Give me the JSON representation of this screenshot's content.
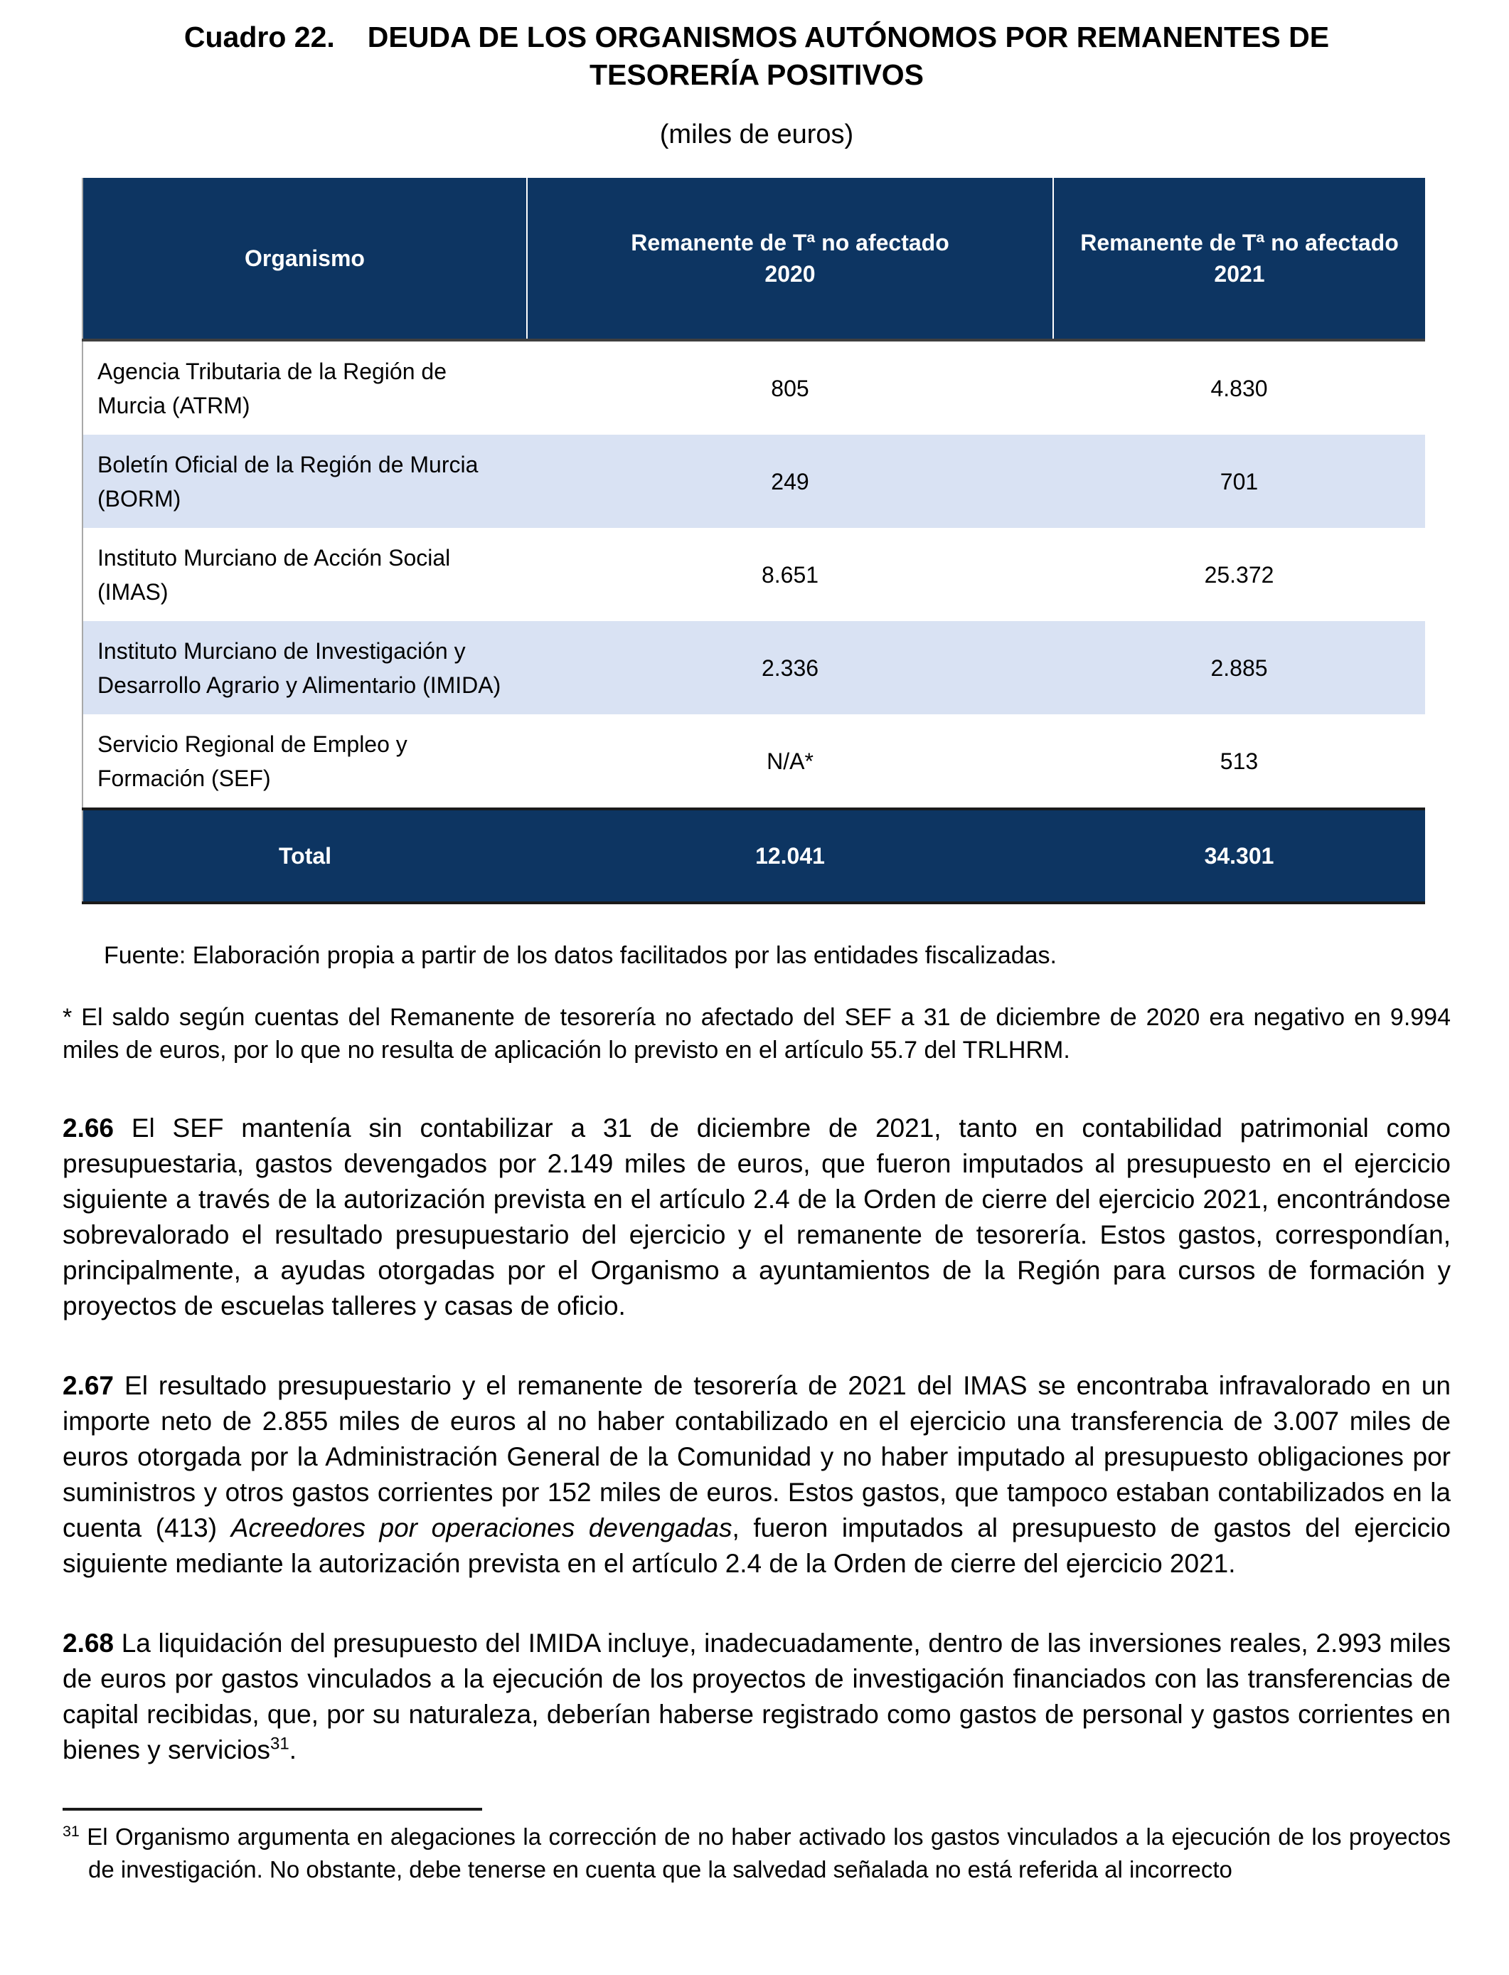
{
  "colors": {
    "header_bg": "#0d3562",
    "row_alt_bg": "#d9e2f3",
    "header_text": "#ffffff"
  },
  "heading": {
    "label": "Cuadro 22.",
    "title": "DEUDA DE LOS ORGANISMOS AUTÓNOMOS POR REMANENTES DE\nTESORERÍA POSITIVOS",
    "units": "(miles de euros)"
  },
  "table": {
    "columns": [
      "Organismo",
      "Remanente de Tª no afectado\n2020",
      "Remanente de Tª no afectado\n2021"
    ],
    "rows": [
      {
        "name": "Agencia Tributaria de la Región de\nMurcia (ATRM)",
        "v2020": "805",
        "v2021": "4.830"
      },
      {
        "name": "Boletín Oficial de la Región de Murcia\n(BORM)",
        "v2020": "249",
        "v2021": "701"
      },
      {
        "name": "Instituto Murciano de Acción Social\n(IMAS)",
        "v2020": "8.651",
        "v2021": "25.372"
      },
      {
        "name": "Instituto Murciano de Investigación y\nDesarrollo Agrario y Alimentario (IMIDA)",
        "v2020": "2.336",
        "v2021": "2.885"
      },
      {
        "name": "Servicio Regional de Empleo y\nFormación (SEF)",
        "v2020": "N/A*",
        "v2021": "513"
      }
    ],
    "total": {
      "label": "Total",
      "v2020": "12.041",
      "v2021": "34.301"
    },
    "source": "Fuente: Elaboración propia a partir de los datos facilitados por las entidades fiscalizadas."
  },
  "notes": {
    "asterisk": "* El saldo según cuentas del Remanente de tesorería no afectado del SEF a 31 de diciembre de 2020 era negativo en 9.994 miles de euros, por lo que no resulta de aplicación lo previsto en el artículo 55.7 del TRLHRM."
  },
  "paragraphs": [
    {
      "id": "2.66",
      "segments": [
        {
          "t": "2.66",
          "b": true
        },
        {
          "t": " El SEF mantenía sin contabilizar a 31 de diciembre de 2021, tanto en contabilidad patrimonial como presupuestaria, gastos devengados por 2.149 miles de euros, que fueron imputados al presupuesto en el ejercicio siguiente a través de la autorización prevista en el artículo 2.4 de la Orden de cierre del ejercicio 2021, encontrándose sobrevalorado el resultado presupuestario del ejercicio y el remanente de tesorería. Estos gastos, correspondían, principalmente, a ayudas otorgadas por el Organismo a ayuntamientos de la Región para cursos de formación y proyectos de escuelas talleres y casas de oficio."
        }
      ]
    },
    {
      "id": "2.67",
      "segments": [
        {
          "t": "2.67",
          "b": true
        },
        {
          "t": " El resultado presupuestario y el remanente de tesorería de 2021 del IMAS se encontraba infravalorado en un importe neto de 2.855 miles de euros al no haber contabilizado en el ejercicio una transferencia de 3.007 miles de euros otorgada por la Administración General de la Comunidad y no haber imputado al presupuesto obligaciones por suministros y otros gastos corrientes por 152 miles de euros. Estos gastos, que tampoco estaban contabilizados en la cuenta (413) "
        },
        {
          "t": "Acreedores por operaciones devengadas",
          "i": true
        },
        {
          "t": ", fueron imputados al presupuesto de gastos del ejercicio siguiente mediante la autorización prevista en el artículo 2.4 de la Orden de cierre del ejercicio 2021."
        }
      ]
    },
    {
      "id": "2.68",
      "segments": [
        {
          "t": "2.68",
          "b": true
        },
        {
          "t": " La liquidación del presupuesto del IMIDA incluye, inadecuadamente, dentro de las inversiones reales, 2.993 miles de euros por gastos vinculados a la ejecución de los proyectos de investigación financiados con las transferencias de capital recibidas, que, por su naturaleza, deberían haberse registrado como gastos de personal y gastos corrientes en bienes y servicios"
        },
        {
          "t": "31",
          "sup": true
        },
        {
          "t": "."
        }
      ]
    }
  ],
  "footnote": {
    "segments": [
      {
        "t": "31",
        "sup": true
      },
      {
        "t": " El Organismo argumenta en alegaciones la corrección de no haber activado los gastos vinculados a la ejecución de los proyectos de investigación. No obstante, debe tenerse en cuenta que la salvedad señalada no está referida al incorrecto"
      }
    ]
  }
}
